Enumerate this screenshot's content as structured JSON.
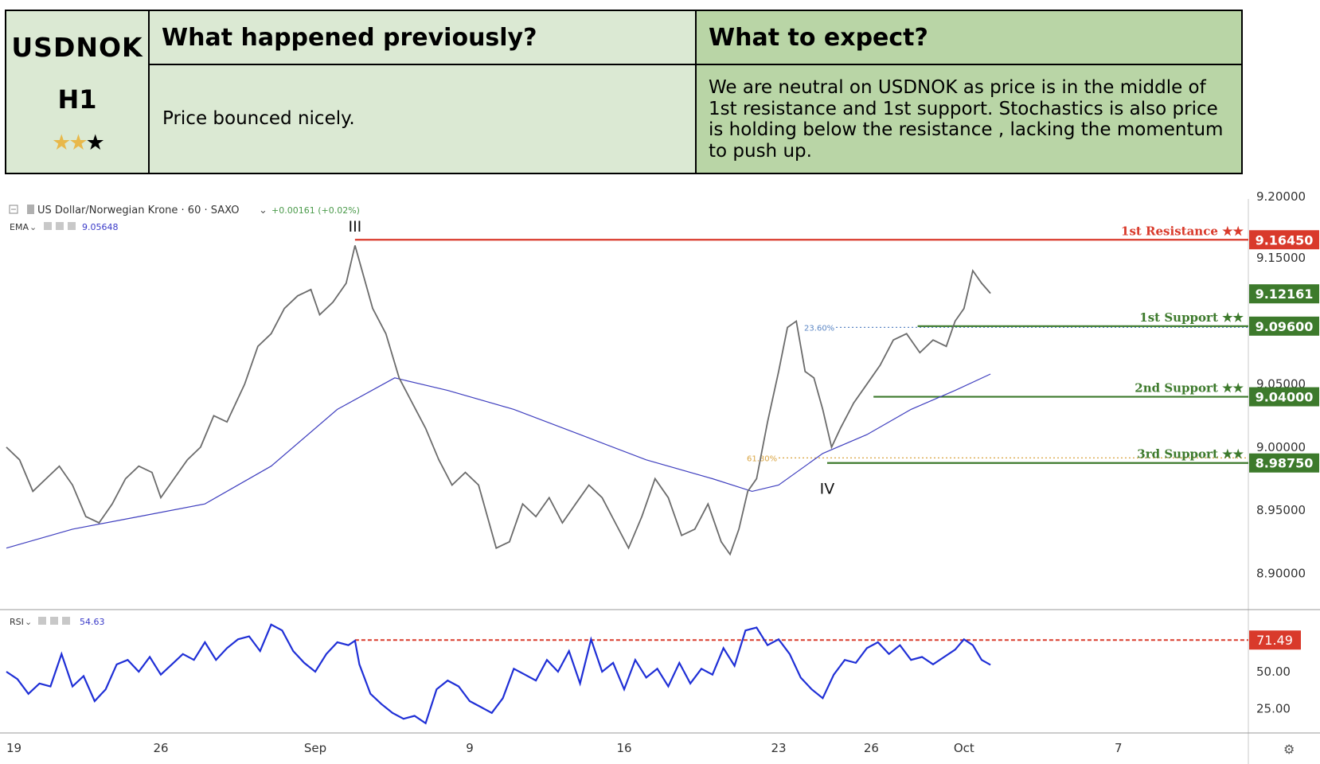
{
  "header": {
    "symbol": "USDNOK",
    "timeframe": "H1",
    "stars": [
      "star-on",
      "star-on",
      "star-off"
    ],
    "previous_title": "What happened previously?",
    "previous_text": "Price bounced nicely.",
    "expect_title": "What to expect?",
    "expect_text": "We are neutral on USDNOK as price is in the middle of 1st resistance and 1st support. Stochastics is also price is holding below the resistance , lacking the momentum to push up."
  },
  "chart_data": {
    "type": "line",
    "title": "US Dollar/Norwegian Krone · 60 · SAXO",
    "change_text": "+0.00161 (+0.02%)",
    "ema_label": "EMA",
    "ema_value": "9.05648",
    "price_axis": {
      "ylim": [
        8.875,
        9.2
      ],
      "ticks": [
        "9.15000",
        "9.05000",
        "9.00000",
        "8.95000",
        "8.90000"
      ],
      "tick_values": [
        9.15,
        9.05,
        9.0,
        8.95,
        8.9
      ],
      "top_partial": "9.20000",
      "current_price": "9.12161",
      "current_price_value": 9.12161
    },
    "x_axis": {
      "ticks": [
        "19",
        "26",
        "Sep",
        "9",
        "16",
        "23",
        "26",
        "Oct",
        "7"
      ],
      "tick_bar": [
        0,
        70,
        140,
        210,
        280,
        350,
        392,
        434,
        504
      ],
      "total_bars": 560
    },
    "levels": [
      {
        "name": "1st Resistance ★★",
        "price": "9.16450",
        "value": 9.1645,
        "color": "#d93a2b",
        "start_bar": 158
      },
      {
        "name": "1st Support ★★",
        "price": "9.09600",
        "value": 9.096,
        "color": "#3d7a2c",
        "start_bar": 413
      },
      {
        "name": "2nd Support ★★",
        "price": "9.04000",
        "value": 9.04,
        "color": "#3d7a2c",
        "start_bar": 393
      },
      {
        "name": "3rd Support ★★",
        "price": "8.98750",
        "value": 8.9875,
        "color": "#3d7a2c",
        "start_bar": 372
      }
    ],
    "fib_levels": [
      {
        "label": "23.60%",
        "value": 9.095,
        "color": "#5b86c4"
      },
      {
        "label": "61.80%",
        "value": 8.9915,
        "color": "#d9a441"
      }
    ],
    "wave_labels": [
      {
        "text": "III",
        "bar": 158,
        "value": 9.171
      },
      {
        "text": "IV",
        "bar": 372,
        "value": 8.963
      }
    ],
    "price_series": [
      [
        0,
        9.0
      ],
      [
        6,
        8.99
      ],
      [
        12,
        8.965
      ],
      [
        18,
        8.975
      ],
      [
        24,
        8.985
      ],
      [
        30,
        8.97
      ],
      [
        36,
        8.945
      ],
      [
        42,
        8.94
      ],
      [
        48,
        8.955
      ],
      [
        54,
        8.975
      ],
      [
        60,
        8.985
      ],
      [
        66,
        8.98
      ],
      [
        70,
        8.96
      ],
      [
        76,
        8.975
      ],
      [
        82,
        8.99
      ],
      [
        88,
        9.0
      ],
      [
        94,
        9.025
      ],
      [
        100,
        9.02
      ],
      [
        108,
        9.05
      ],
      [
        114,
        9.08
      ],
      [
        120,
        9.09
      ],
      [
        126,
        9.11
      ],
      [
        132,
        9.12
      ],
      [
        138,
        9.125
      ],
      [
        142,
        9.105
      ],
      [
        148,
        9.115
      ],
      [
        154,
        9.13
      ],
      [
        158,
        9.16
      ],
      [
        162,
        9.135
      ],
      [
        166,
        9.11
      ],
      [
        172,
        9.09
      ],
      [
        178,
        9.055
      ],
      [
        184,
        9.035
      ],
      [
        190,
        9.015
      ],
      [
        196,
        8.99
      ],
      [
        202,
        8.97
      ],
      [
        208,
        8.98
      ],
      [
        214,
        8.97
      ],
      [
        218,
        8.945
      ],
      [
        222,
        8.92
      ],
      [
        228,
        8.925
      ],
      [
        234,
        8.955
      ],
      [
        240,
        8.945
      ],
      [
        246,
        8.96
      ],
      [
        252,
        8.94
      ],
      [
        258,
        8.955
      ],
      [
        264,
        8.97
      ],
      [
        270,
        8.96
      ],
      [
        276,
        8.94
      ],
      [
        282,
        8.92
      ],
      [
        288,
        8.945
      ],
      [
        294,
        8.975
      ],
      [
        300,
        8.96
      ],
      [
        306,
        8.93
      ],
      [
        312,
        8.935
      ],
      [
        318,
        8.955
      ],
      [
        324,
        8.925
      ],
      [
        328,
        8.915
      ],
      [
        332,
        8.935
      ],
      [
        336,
        8.965
      ],
      [
        340,
        8.975
      ],
      [
        345,
        9.02
      ],
      [
        350,
        9.06
      ],
      [
        354,
        9.095
      ],
      [
        358,
        9.1
      ],
      [
        362,
        9.06
      ],
      [
        366,
        9.055
      ],
      [
        370,
        9.03
      ],
      [
        374,
        9.0
      ],
      [
        378,
        9.015
      ],
      [
        384,
        9.035
      ],
      [
        390,
        9.05
      ],
      [
        396,
        9.065
      ],
      [
        402,
        9.085
      ],
      [
        408,
        9.09
      ],
      [
        414,
        9.075
      ],
      [
        420,
        9.085
      ],
      [
        426,
        9.08
      ],
      [
        430,
        9.1
      ],
      [
        434,
        9.11
      ],
      [
        438,
        9.14
      ],
      [
        442,
        9.13
      ],
      [
        446,
        9.122
      ]
    ],
    "ema_series": [
      [
        0,
        8.92
      ],
      [
        30,
        8.935
      ],
      [
        60,
        8.945
      ],
      [
        90,
        8.955
      ],
      [
        120,
        8.985
      ],
      [
        150,
        9.03
      ],
      [
        176,
        9.055
      ],
      [
        200,
        9.045
      ],
      [
        230,
        9.03
      ],
      [
        260,
        9.01
      ],
      [
        290,
        8.99
      ],
      [
        320,
        8.975
      ],
      [
        338,
        8.965
      ],
      [
        350,
        8.97
      ],
      [
        370,
        8.995
      ],
      [
        390,
        9.01
      ],
      [
        410,
        9.03
      ],
      [
        430,
        9.045
      ],
      [
        446,
        9.058
      ]
    ]
  },
  "rsi_data": {
    "label": "RSI",
    "value": "54.63",
    "ylim": [
      10,
      90
    ],
    "ticks": [
      "50.00",
      "25.00"
    ],
    "tick_values": [
      50,
      25
    ],
    "overbought": "71.49",
    "overbought_value": 71.49,
    "overbought_start_bar": 158,
    "series": [
      [
        0,
        50
      ],
      [
        5,
        45
      ],
      [
        10,
        35
      ],
      [
        15,
        42
      ],
      [
        20,
        40
      ],
      [
        25,
        62
      ],
      [
        30,
        40
      ],
      [
        35,
        47
      ],
      [
        40,
        30
      ],
      [
        45,
        38
      ],
      [
        50,
        55
      ],
      [
        55,
        58
      ],
      [
        60,
        50
      ],
      [
        65,
        60
      ],
      [
        70,
        48
      ],
      [
        75,
        55
      ],
      [
        80,
        62
      ],
      [
        85,
        58
      ],
      [
        90,
        70
      ],
      [
        95,
        58
      ],
      [
        100,
        66
      ],
      [
        105,
        72
      ],
      [
        110,
        74
      ],
      [
        115,
        64
      ],
      [
        120,
        82
      ],
      [
        125,
        78
      ],
      [
        130,
        64
      ],
      [
        135,
        56
      ],
      [
        140,
        50
      ],
      [
        145,
        62
      ],
      [
        150,
        70
      ],
      [
        155,
        68
      ],
      [
        158,
        71
      ],
      [
        160,
        55
      ],
      [
        165,
        35
      ],
      [
        170,
        28
      ],
      [
        175,
        22
      ],
      [
        180,
        18
      ],
      [
        185,
        20
      ],
      [
        190,
        15
      ],
      [
        195,
        38
      ],
      [
        200,
        44
      ],
      [
        205,
        40
      ],
      [
        210,
        30
      ],
      [
        215,
        26
      ],
      [
        220,
        22
      ],
      [
        225,
        32
      ],
      [
        230,
        52
      ],
      [
        235,
        48
      ],
      [
        240,
        44
      ],
      [
        245,
        58
      ],
      [
        250,
        50
      ],
      [
        255,
        64
      ],
      [
        260,
        42
      ],
      [
        265,
        72
      ],
      [
        270,
        50
      ],
      [
        275,
        56
      ],
      [
        280,
        38
      ],
      [
        285,
        58
      ],
      [
        290,
        46
      ],
      [
        295,
        52
      ],
      [
        300,
        40
      ],
      [
        305,
        56
      ],
      [
        310,
        42
      ],
      [
        315,
        52
      ],
      [
        320,
        48
      ],
      [
        325,
        66
      ],
      [
        330,
        54
      ],
      [
        335,
        78
      ],
      [
        340,
        80
      ],
      [
        345,
        68
      ],
      [
        350,
        72
      ],
      [
        355,
        62
      ],
      [
        360,
        46
      ],
      [
        365,
        38
      ],
      [
        370,
        32
      ],
      [
        375,
        48
      ],
      [
        380,
        58
      ],
      [
        385,
        56
      ],
      [
        390,
        66
      ],
      [
        395,
        70
      ],
      [
        400,
        62
      ],
      [
        405,
        68
      ],
      [
        410,
        58
      ],
      [
        415,
        60
      ],
      [
        420,
        55
      ],
      [
        425,
        60
      ],
      [
        430,
        65
      ],
      [
        434,
        72
      ],
      [
        438,
        68
      ],
      [
        442,
        58
      ],
      [
        446,
        54.63
      ]
    ]
  }
}
